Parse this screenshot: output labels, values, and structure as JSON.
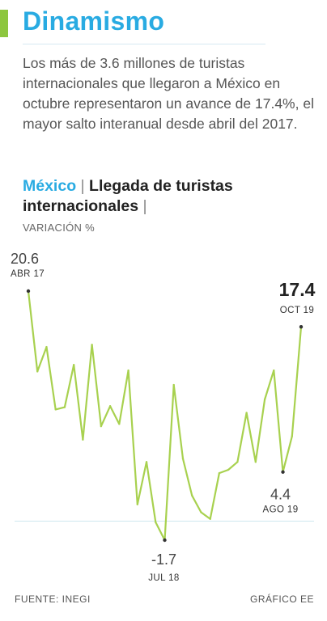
{
  "header": {
    "title": "Dinamismo",
    "lead": "Los más de 3.6 millones de turistas internacionales que llegaron a México en octubre representaron un avance de 17.4%, el mayor salto interanual desde abril del 2017.",
    "country": "México",
    "subtitle": "Llegada de turistas internacionales",
    "sep": "|"
  },
  "colors": {
    "line": "#a8d14f",
    "accent": "#29abe2",
    "bar": "#8dc63f",
    "zero": "#cfe7ef"
  },
  "chart_data": {
    "type": "line",
    "ylabel": "VARIACIÓN %",
    "x": [
      "2017-04",
      "2017-05",
      "2017-06",
      "2017-07",
      "2017-08",
      "2017-09",
      "2017-10",
      "2017-11",
      "2017-12",
      "2018-01",
      "2018-02",
      "2018-03",
      "2018-04",
      "2018-05",
      "2018-06",
      "2018-07",
      "2018-08",
      "2018-09",
      "2018-10",
      "2018-11",
      "2018-12",
      "2019-01",
      "2019-02",
      "2019-03",
      "2019-04",
      "2019-05",
      "2019-06",
      "2019-07",
      "2019-08",
      "2019-09",
      "2019-10"
    ],
    "series": [
      {
        "values": [
          20.6,
          13.4,
          15.6,
          10.0,
          10.2,
          14.0,
          7.3,
          15.8,
          8.5,
          10.3,
          8.7,
          13.5,
          1.5,
          5.3,
          -0.1,
          -1.7,
          12.2,
          5.6,
          2.3,
          0.8,
          0.2,
          4.3,
          4.6,
          5.3,
          9.7,
          5.3,
          10.9,
          13.5,
          4.4,
          7.6,
          17.4
        ]
      }
    ],
    "ylim": [
      -1.7,
      20.6
    ],
    "annotations": [
      {
        "index": 0,
        "value_text": "20.6",
        "date_text": "ABR 17"
      },
      {
        "index": 15,
        "value_text": "-1.7",
        "date_text": "JUL 18"
      },
      {
        "index": 28,
        "value_text": "4.4",
        "date_text": "AGO 19"
      },
      {
        "index": 30,
        "value_text": "17.4",
        "date_text": "OCT 19"
      }
    ]
  },
  "footer": {
    "source": "FUENTE: INEGI",
    "credit": "GRÁFICO EE"
  }
}
